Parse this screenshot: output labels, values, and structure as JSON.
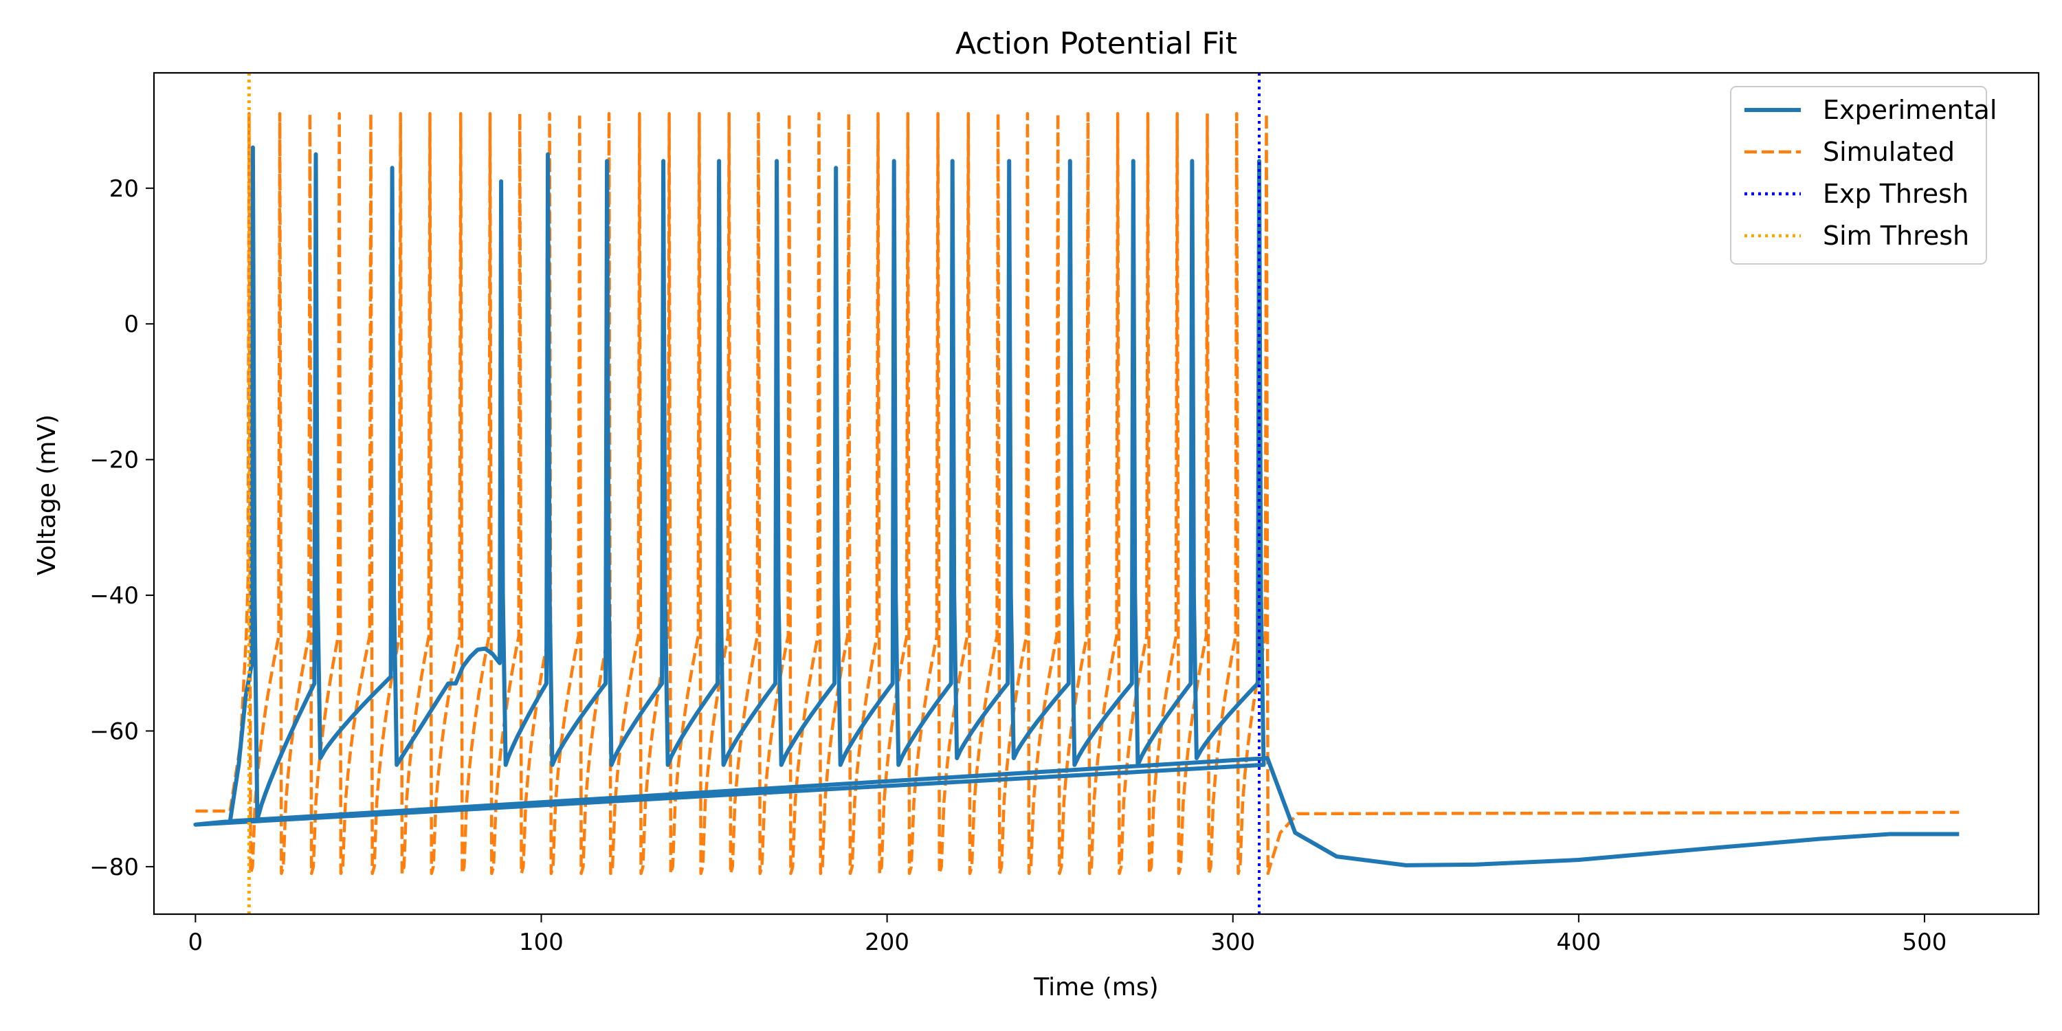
{
  "chart_data": {
    "type": "line",
    "title": "Action Potential Fit",
    "xlabel": "Time (ms)",
    "ylabel": "Voltage (mV)",
    "xlim": [
      -12,
      533
    ],
    "ylim": [
      -87,
      37
    ],
    "xticks": [
      0,
      100,
      200,
      300,
      400,
      500
    ],
    "yticks": [
      -80,
      -60,
      -40,
      -20,
      0,
      20
    ],
    "xtick_labels": [
      "0",
      "100",
      "200",
      "300",
      "400",
      "500"
    ],
    "ytick_labels": [
      "−80",
      "−60",
      "−40",
      "−20",
      "0",
      "20"
    ],
    "grid": false,
    "legend_position": "top-right",
    "series": [
      {
        "name": "Experimental",
        "color": "#1f77b4",
        "style": "solid",
        "stimulus": [
          10,
          310
        ],
        "spike_times": [
          16.6,
          34.8,
          56.9,
          88.4,
          101.9,
          119.0,
          135.3,
          151.4,
          168.1,
          185.2,
          202.0,
          218.9,
          235.3,
          252.9,
          271.2,
          288.2,
          307.6
        ],
        "spike_peaks": [
          26,
          25,
          23,
          21,
          25,
          24,
          24,
          24,
          24,
          23,
          24,
          24,
          24,
          24,
          24,
          24,
          24
        ],
        "post_spike_min": [
          -73,
          -64,
          -65,
          -65,
          -65,
          -65,
          -65,
          -65,
          -65,
          -65,
          -65,
          -64,
          -64,
          -65,
          -65,
          -64,
          -65
        ],
        "rest_points": [
          [
            0,
            -73.8
          ],
          [
            10,
            -73.3
          ],
          [
            310,
            -64
          ],
          [
            318,
            -75
          ],
          [
            330,
            -78.5
          ],
          [
            350,
            -79.8
          ],
          [
            370,
            -79.7
          ],
          [
            400,
            -79.0
          ],
          [
            440,
            -77.2
          ],
          [
            470,
            -75.9
          ],
          [
            490,
            -75.2
          ],
          [
            510,
            -75.2
          ]
        ]
      },
      {
        "name": "Simulated",
        "color": "#ff7f0e",
        "style": "dashed",
        "stimulus": [
          10,
          310
        ],
        "spike_times": [
          15.5,
          24.4,
          33.1,
          41.6,
          50.7,
          59.3,
          67.8,
          76.7,
          85.2,
          93.8,
          102.4,
          111.1,
          119.6,
          128.4,
          137.0,
          145.7,
          154.3,
          162.8,
          171.7,
          180.3,
          188.9,
          197.4,
          206.0,
          214.7,
          223.5,
          232.1,
          240.6,
          249.4,
          258.1,
          266.7,
          275.4,
          283.9,
          292.6,
          301.1,
          309.7
        ],
        "spike_peak": 31,
        "spike_min": -81,
        "rest_before": -71.8,
        "rest_after": -72.2
      },
      {
        "name": "Exp Thresh",
        "color": "#0000ff",
        "style": "dotted",
        "x": [
          15.5,
          307.6
        ]
      },
      {
        "name": "Sim Thresh",
        "color": "#ffa500",
        "style": "dotted",
        "x": [
          15.5
        ]
      }
    ]
  }
}
